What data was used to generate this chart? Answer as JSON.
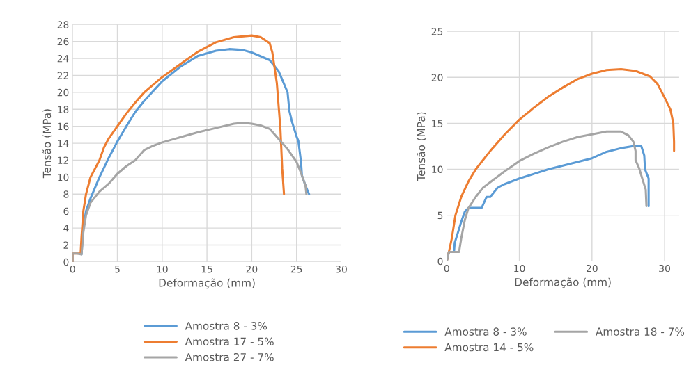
{
  "chart_data": [
    {
      "type": "line",
      "xlabel": "Deformação (mm)",
      "ylabel": "Tensão (MPa)",
      "xlim": [
        0,
        30
      ],
      "ylim": [
        0,
        28
      ],
      "xticks": [
        0,
        5,
        10,
        15,
        20,
        25,
        30
      ],
      "yticks": [
        0,
        2,
        4,
        6,
        8,
        10,
        12,
        14,
        16,
        18,
        20,
        22,
        24,
        26,
        28
      ],
      "grid": true,
      "legend": "bottom",
      "marker": "none",
      "line_style": "solid",
      "series": [
        {
          "name": "Amostra 8 - 3%",
          "color": "#5b9bd5",
          "x": [
            1,
            1.2,
            1.5,
            2,
            3,
            4,
            5,
            6,
            7,
            8,
            10,
            12,
            14,
            16,
            17.5,
            19,
            20,
            22,
            23,
            24,
            24.2,
            24.5,
            25,
            25.2,
            25.5,
            25.6,
            26,
            26.4
          ],
          "values": [
            0.9,
            4,
            6,
            7.5,
            10,
            12.2,
            14.2,
            16,
            17.7,
            19,
            21.3,
            23,
            24.3,
            24.9,
            25.1,
            25,
            24.7,
            23.8,
            22.5,
            20,
            17.8,
            16.5,
            14.8,
            14.3,
            11.8,
            10.2,
            9,
            8
          ]
        },
        {
          "name": "Amostra 17 - 5%",
          "color": "#ed7d31",
          "x": [
            0,
            0,
            0.5,
            0.9,
            1,
            1.2,
            1.5,
            2,
            3,
            3.5,
            4,
            5,
            6,
            7,
            8,
            10,
            12,
            14,
            16,
            18,
            20,
            21,
            22,
            22.3,
            22.8,
            23.2,
            23.4,
            23.6
          ],
          "values": [
            0,
            1,
            1,
            1,
            3,
            6,
            8,
            10,
            12,
            13.5,
            14.5,
            16,
            17.5,
            18.8,
            20,
            21.8,
            23.3,
            24.8,
            25.9,
            26.5,
            26.7,
            26.5,
            25.8,
            24.7,
            21.1,
            15.7,
            11,
            8
          ]
        },
        {
          "name": "Amostra 27 - 7%",
          "color": "#a5a5a5",
          "x": [
            0,
            0,
            0.5,
            1,
            1.2,
            1.5,
            2,
            3,
            4,
            5,
            6,
            7,
            8,
            9,
            10,
            12,
            14,
            16,
            18,
            19,
            20,
            21,
            22,
            23,
            24,
            25,
            25.5,
            26,
            26.1
          ],
          "values": [
            0,
            1,
            1,
            0.9,
            3.5,
            5.5,
            7,
            8.3,
            9.2,
            10.4,
            11.3,
            12,
            13.2,
            13.7,
            14.1,
            14.7,
            15.3,
            15.8,
            16.3,
            16.4,
            16.3,
            16.1,
            15.7,
            14.5,
            13.3,
            11.8,
            10.5,
            9,
            8
          ]
        }
      ]
    },
    {
      "type": "line",
      "xlabel": "Deformação (mm)",
      "ylabel": "Tensão (MPa)",
      "xlim": [
        0,
        32
      ],
      "ylim": [
        0,
        25
      ],
      "xticks": [
        0,
        10,
        20,
        30
      ],
      "yticks": [
        0,
        5,
        10,
        15,
        20,
        25
      ],
      "grid": true,
      "legend": "bottom",
      "marker": "none",
      "line_style": "solid",
      "series": [
        {
          "name": "Amostra 8 - 3%",
          "color": "#5b9bd5",
          "x": [
            0,
            0.3,
            1,
            1.1,
            1.5,
            2,
            2.5,
            3,
            4,
            4.8,
            5.5,
            6,
            6.5,
            7,
            8,
            10,
            12,
            14,
            16,
            18,
            20,
            22,
            24,
            25.5,
            26.8,
            27.2,
            27.3,
            27.8,
            27.8
          ],
          "values": [
            0,
            1,
            1,
            2,
            3,
            4.3,
            5.4,
            5.8,
            5.8,
            5.8,
            7,
            7,
            7.5,
            8,
            8.4,
            9,
            9.5,
            10,
            10.4,
            10.8,
            11.2,
            11.9,
            12.3,
            12.5,
            12.5,
            11.5,
            10,
            9,
            6
          ]
        },
        {
          "name": "Amostra 14 - 5%",
          "color": "#ed7d31",
          "x": [
            0,
            0.3,
            0.7,
            1.2,
            2,
            3,
            4,
            5,
            6,
            8,
            10,
            12,
            14,
            16,
            18,
            20,
            22,
            24,
            26,
            28,
            29,
            30,
            30.8,
            31.2,
            31.3,
            31.3
          ],
          "values": [
            0,
            1,
            2.5,
            5,
            7,
            8.7,
            10,
            11,
            12,
            13.8,
            15.4,
            16.7,
            17.9,
            18.9,
            19.8,
            20.4,
            20.8,
            20.9,
            20.7,
            20.1,
            19.3,
            17.8,
            16.5,
            15,
            13,
            12
          ]
        },
        {
          "name": "Amostra 18 - 7%",
          "color": "#a5a5a5",
          "x": [
            0,
            0.3,
            1,
            1.7,
            2,
            2.5,
            3,
            4,
            5,
            6,
            8,
            10,
            12,
            14,
            16,
            18,
            20,
            22,
            24,
            25,
            25.7,
            26,
            26,
            26.5,
            27,
            27.4,
            27.5
          ],
          "values": [
            0,
            1,
            1,
            1,
            2.5,
            4.5,
            5.8,
            7,
            8,
            8.6,
            9.8,
            10.9,
            11.7,
            12.4,
            13,
            13.5,
            13.8,
            14.1,
            14.1,
            13.7,
            13,
            12,
            11,
            10.1,
            8.8,
            7.8,
            6
          ]
        }
      ]
    }
  ]
}
